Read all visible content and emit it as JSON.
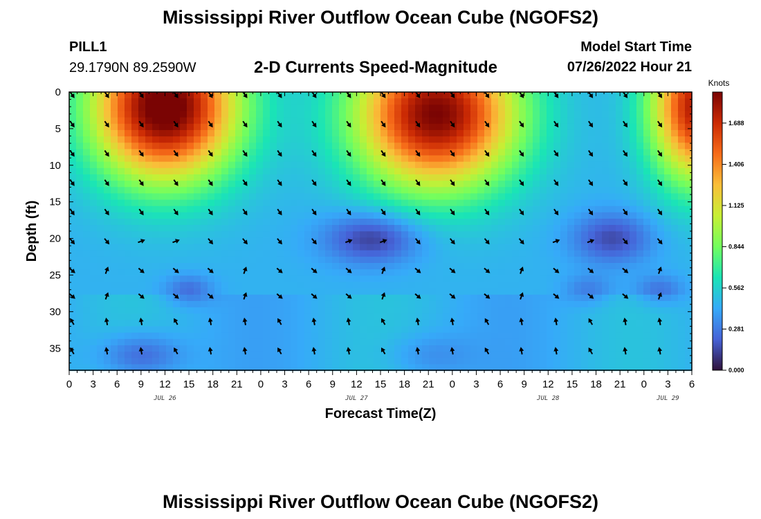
{
  "header": {
    "title": "Mississippi River Outflow Ocean Cube (NGOFS2)",
    "station": "PILL1",
    "coordinates": "29.1790N  89.2590W",
    "subtitle": "2-D Currents Speed-Magnitude",
    "model_start_label": "Model Start Time",
    "model_start_value": "07/26/2022 Hour 21"
  },
  "footer": {
    "title": "Mississippi River Outflow Ocean Cube (NGOFS2)"
  },
  "chart_data": {
    "type": "heatmap",
    "title": "2-D Currents Speed-Magnitude",
    "xlabel": "Forecast Time(Z)",
    "ylabel": "Depth (ft)",
    "ylim": [
      0,
      38
    ],
    "y_inverted": true,
    "xlim_hours": [
      0,
      78
    ],
    "x_ticks": [
      "0",
      "3",
      "6",
      "9",
      "12",
      "15",
      "18",
      "21",
      "0",
      "3",
      "6",
      "9",
      "12",
      "15",
      "18",
      "21",
      "0",
      "3",
      "6",
      "9",
      "12",
      "15",
      "18",
      "21",
      "0",
      "3",
      "6"
    ],
    "y_ticks": [
      "0",
      "5",
      "10",
      "15",
      "20",
      "25",
      "30",
      "35"
    ],
    "date_labels": [
      {
        "label": "JUL 26",
        "hour": 12
      },
      {
        "label": "JUL 27",
        "hour": 36
      },
      {
        "label": "JUL 28",
        "hour": 60
      },
      {
        "label": "JUL 29",
        "hour": 75
      }
    ],
    "colorbar": {
      "title": "Knots",
      "min": 0,
      "max": 1.9,
      "ticks": [
        "0.000",
        "0.281",
        "0.562",
        "0.844",
        "1.125",
        "1.406",
        "1.688"
      ],
      "colormap": [
        "#30123b",
        "#4662d7",
        "#36aaf9",
        "#1ae4b6",
        "#72fe5e",
        "#c7ef34",
        "#fabe39",
        "#f66b19",
        "#cb2a04",
        "#7a0403"
      ]
    },
    "arrow_depths": [
      0,
      4,
      8,
      12,
      16,
      20,
      24,
      27.5,
      31,
      35
    ],
    "arrow_hours_step": 4.33,
    "speed_field_description": "surface maxima near hours 12 and 46 and hour 78; subsurface minima near depth 20 ft at hours 38 and 68"
  }
}
